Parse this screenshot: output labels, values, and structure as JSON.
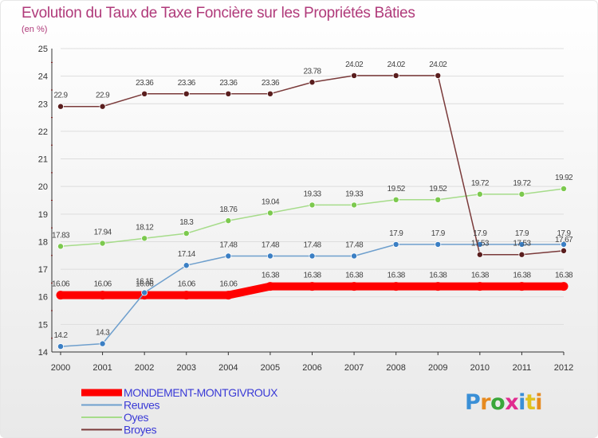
{
  "title": "Evolution du Taux de Taxe Foncière sur les Propriétés Bâties",
  "subtitle": "(en %)",
  "logo": {
    "text": "Proxiti",
    "colors": [
      "#3a8fd6",
      "#e68a1f",
      "#3aa63a",
      "#e02b8f",
      "#3a8fd6",
      "#e0c21f",
      "#e68a1f"
    ]
  },
  "chart_data": {
    "type": "line",
    "title": "Evolution du Taux de Taxe Foncière sur les Propriétés Bâties",
    "ylabel": "(en %)",
    "xlabel": "",
    "x": [
      "2000",
      "2001",
      "2002",
      "2003",
      "2004",
      "2005",
      "2006",
      "2007",
      "2008",
      "2009",
      "2010",
      "2011",
      "2012"
    ],
    "ylim": [
      14,
      25
    ],
    "yticks": [
      "14",
      "15",
      "16",
      "17",
      "18",
      "19",
      "20",
      "21",
      "22",
      "23",
      "24",
      "25"
    ],
    "legend_position": "bottom-left",
    "series": [
      {
        "name": "MONDEMENT-MONTGIVROUX",
        "color": "#ff0000",
        "dot": "#ff0000",
        "width": 10,
        "marker": false,
        "values": [
          16.06,
          16.06,
          16.06,
          16.06,
          16.06,
          16.38,
          16.38,
          16.38,
          16.38,
          16.38,
          16.38,
          16.38,
          16.38
        ],
        "labels": [
          "16.06",
          "16.06",
          "16.06",
          "16.06",
          "16.06",
          "16.38",
          "16.38",
          "16.38",
          "16.38",
          "16.38",
          "16.38",
          "16.38",
          "16.38"
        ]
      },
      {
        "name": "Reuves",
        "color": "#6e9fcd",
        "dot": "#3b7fc4",
        "width": 1.5,
        "marker": true,
        "values": [
          14.2,
          14.3,
          16.15,
          17.14,
          17.48,
          17.48,
          17.48,
          17.48,
          17.9,
          17.9,
          17.9,
          17.9,
          17.9
        ],
        "labels": [
          "14.2",
          "14.3",
          "16.15",
          "17.14",
          "17.48",
          "17.48",
          "17.48",
          "17.48",
          "17.9",
          "17.9",
          "17.9",
          "17.9",
          "17.9"
        ]
      },
      {
        "name": "Oyes",
        "color": "#a6dc8a",
        "dot": "#7cc94e",
        "width": 1.5,
        "marker": true,
        "values": [
          17.83,
          17.94,
          18.12,
          18.3,
          18.76,
          19.04,
          19.33,
          19.33,
          19.52,
          19.52,
          19.72,
          19.72,
          19.92
        ],
        "labels": [
          "17.83",
          "17.94",
          "18.12",
          "18.3",
          "18.76",
          "19.04",
          "19.33",
          "19.33",
          "19.52",
          "19.52",
          "19.72",
          "19.72",
          "19.92"
        ]
      },
      {
        "name": "Broyes",
        "color": "#7a3a3a",
        "dot": "#5a1e1e",
        "width": 1.5,
        "marker": true,
        "values": [
          22.9,
          22.9,
          23.36,
          23.36,
          23.36,
          23.36,
          23.78,
          24.02,
          24.02,
          24.02,
          17.53,
          17.53,
          17.67
        ],
        "labels": [
          "22.9",
          "22.9",
          "23.36",
          "23.36",
          "23.36",
          "23.36",
          "23.78",
          "24.02",
          "24.02",
          "24.02",
          "17.53",
          "17.53",
          "17.67"
        ]
      }
    ]
  }
}
